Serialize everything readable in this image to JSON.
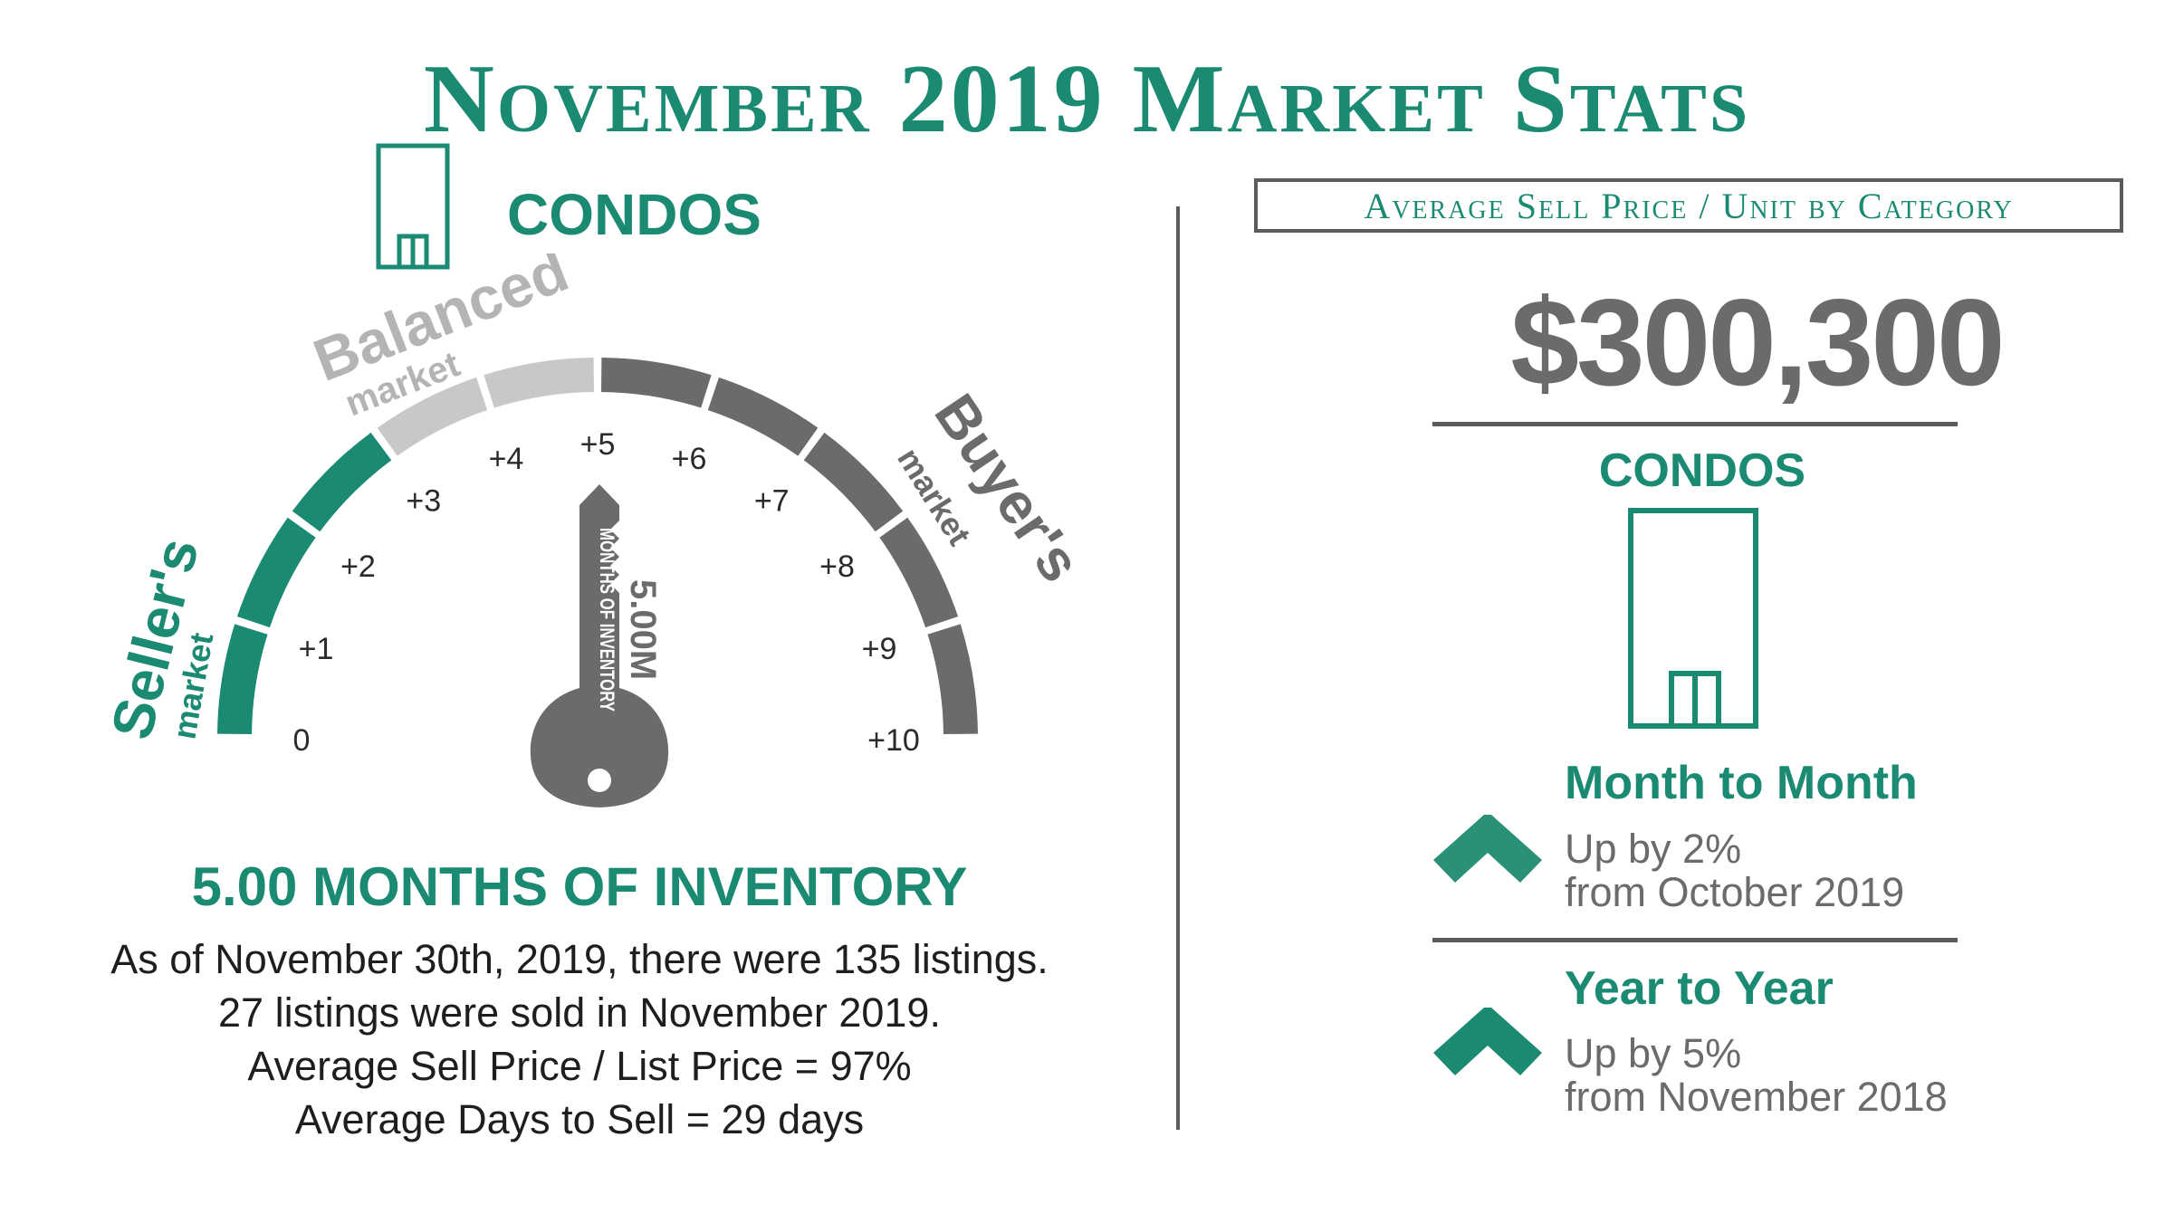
{
  "title": "November 2019 Market Stats",
  "left": {
    "category": "CONDOS",
    "gauge": {
      "balanced_label": "Balanced",
      "balanced_sub": "market",
      "sellers_label": "Seller's",
      "sellers_sub": "market",
      "buyers_label": "Buyer's",
      "buyers_sub": "market",
      "ticks": [
        "0",
        "+1",
        "+2",
        "+3",
        "+4",
        "+5",
        "+6",
        "+7",
        "+8",
        "+9",
        "+10"
      ],
      "key_value": "5.00M",
      "key_caption": "MONTHS OF INVENTORY",
      "value": 5.0,
      "colors": {
        "sellers": "#1b8a73",
        "balanced": "#c8c8c8",
        "buyers": "#6b6b6e"
      }
    },
    "headline": "5.00 MONTHS OF INVENTORY",
    "lines": [
      "As of November 30th, 2019, there were 135 listings.",
      "27 listings were sold in November 2019.",
      "Average Sell Price / List Price = 97%",
      "Average Days to Sell = 29 days"
    ]
  },
  "right": {
    "box_label": "Average Sell Price / Unit by Category",
    "price": "$300,300",
    "category": "CONDOS",
    "month_to_month": {
      "heading": "Month to Month",
      "change": "Up by 2%",
      "from": "from October 2019",
      "icon": "chevron-up-icon"
    },
    "year_to_year": {
      "heading": "Year to Year",
      "change": "Up by 5%",
      "from": "from November 2018",
      "icon": "chevron-up-icon"
    }
  },
  "colors": {
    "accent": "#1b8a73",
    "grey": "#6b6b6e",
    "light_grey": "#c8c8c8"
  }
}
